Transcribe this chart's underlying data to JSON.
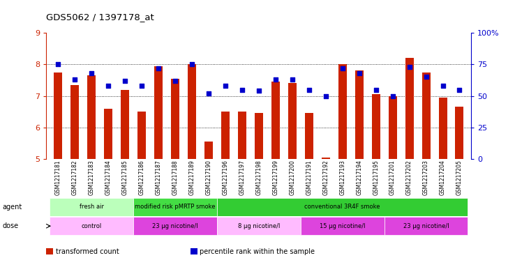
{
  "title": "GDS5062 / 1397178_at",
  "samples": [
    "GSM1217181",
    "GSM1217182",
    "GSM1217183",
    "GSM1217184",
    "GSM1217185",
    "GSM1217186",
    "GSM1217187",
    "GSM1217188",
    "GSM1217189",
    "GSM1217190",
    "GSM1217196",
    "GSM1217197",
    "GSM1217198",
    "GSM1217199",
    "GSM1217200",
    "GSM1217191",
    "GSM1217192",
    "GSM1217193",
    "GSM1217194",
    "GSM1217195",
    "GSM1217201",
    "GSM1217202",
    "GSM1217203",
    "GSM1217204",
    "GSM1217205"
  ],
  "bar_values": [
    7.75,
    7.35,
    7.65,
    6.6,
    7.2,
    6.5,
    7.95,
    7.55,
    8.0,
    5.55,
    6.5,
    6.5,
    6.45,
    7.45,
    7.4,
    6.45,
    5.05,
    8.0,
    7.8,
    7.05,
    7.0,
    8.2,
    7.75,
    6.95,
    6.65
  ],
  "dot_values": [
    75,
    63,
    68,
    58,
    62,
    58,
    72,
    62,
    75,
    52,
    58,
    55,
    54,
    63,
    63,
    55,
    50,
    72,
    68,
    55,
    50,
    73,
    65,
    58,
    55
  ],
  "ylim": [
    5,
    9
  ],
  "ymin": 5,
  "y2lim": [
    0,
    100
  ],
  "yticks": [
    5,
    6,
    7,
    8,
    9
  ],
  "y2ticks": [
    0,
    25,
    50,
    75,
    100
  ],
  "y2ticklabels": [
    "0",
    "25",
    "50",
    "75",
    "100%"
  ],
  "bar_color": "#cc2200",
  "dot_color": "#0000cc",
  "agent_groups": [
    {
      "label": "fresh air",
      "start": 0,
      "end": 5,
      "color": "#bbffbb"
    },
    {
      "label": "modified risk pMRTP smoke",
      "start": 5,
      "end": 10,
      "color": "#44dd44"
    },
    {
      "label": "conventional 3R4F smoke",
      "start": 10,
      "end": 25,
      "color": "#33cc33"
    }
  ],
  "dose_groups": [
    {
      "label": "control",
      "start": 0,
      "end": 5,
      "color": "#ffbbff"
    },
    {
      "label": "23 μg nicotine/l",
      "start": 5,
      "end": 10,
      "color": "#dd44dd"
    },
    {
      "label": "8 μg nicotine/l",
      "start": 10,
      "end": 15,
      "color": "#ffbbff"
    },
    {
      "label": "15 μg nicotine/l",
      "start": 15,
      "end": 20,
      "color": "#dd44dd"
    },
    {
      "label": "23 μg nicotine/l",
      "start": 20,
      "end": 25,
      "color": "#dd44dd"
    }
  ],
  "legend_items": [
    {
      "label": "transformed count",
      "color": "#cc2200"
    },
    {
      "label": "percentile rank within the sample",
      "color": "#0000cc"
    }
  ],
  "left_axis_color": "#cc2200",
  "right_axis_color": "#0000cc",
  "grid_color": "black",
  "bar_width": 0.5,
  "agent_row_label": "agent",
  "dose_row_label": "dose"
}
